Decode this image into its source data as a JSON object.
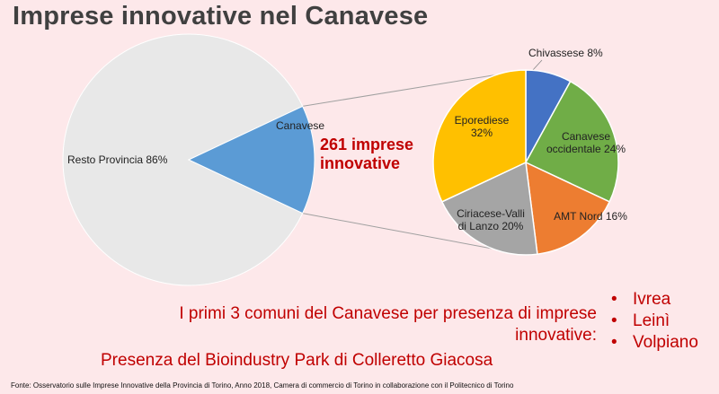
{
  "title": "Imprese innovative nel Canavese",
  "highlight": {
    "line1": "261 imprese",
    "line2": "innovative"
  },
  "info": {
    "line1": "I primi 3 comuni del Canavese per presenza di imprese",
    "line2": "innovative:"
  },
  "comuni": [
    "Ivrea",
    "Leinì",
    "Volpiano"
  ],
  "bioindustry": "Presenza del Bioindustry Park di Colleretto Giacosa",
  "source": "Fonte: Osservatorio sulle Imprese Innovative della Provincia di Torino, Anno 2018, Camera di commercio di Torino in collaborazione con il Politecnico di Torino",
  "chart_data": [
    {
      "type": "pie",
      "slices": [
        {
          "label": "Resto Provincia",
          "value": 86,
          "value_text": "86%",
          "color": "#e8e8e8"
        },
        {
          "label": "Canavese",
          "value": 14,
          "value_text": "",
          "color": "#5b9bd5"
        }
      ]
    },
    {
      "type": "pie",
      "slices": [
        {
          "label": "Chivassese",
          "value": 8,
          "value_text": "8%",
          "color": "#4472c4"
        },
        {
          "label": "Canavese occidentale",
          "value": 24,
          "value_text": "24%",
          "color": "#70ad47"
        },
        {
          "label": "AMT Nord",
          "value": 16,
          "value_text": "16%",
          "color": "#ed7d31"
        },
        {
          "label": "Ciriacese-Valli di Lanzo",
          "value": 20,
          "value_text": "20%",
          "color": "#a5a5a5"
        },
        {
          "label": "Eporediese",
          "value": 32,
          "value_text": "32%",
          "color": "#ffc000"
        }
      ]
    }
  ]
}
